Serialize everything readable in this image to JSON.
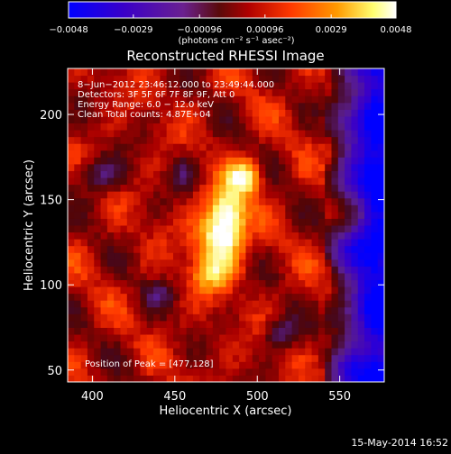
{
  "chart_data": {
    "type": "heatmap",
    "title": "Reconstructed RHESSI Image",
    "xlabel": "Heliocentric X (arcsec)",
    "ylabel": "Heliocentric Y (arcsec)",
    "xlim": [
      385,
      577
    ],
    "ylim": [
      43,
      227
    ],
    "x_ticks": [
      {
        "value": 400,
        "label": "400"
      },
      {
        "value": 450,
        "label": "450"
      },
      {
        "value": 500,
        "label": "500"
      },
      {
        "value": 550,
        "label": "550"
      }
    ],
    "y_ticks": [
      {
        "value": 50,
        "label": "50"
      },
      {
        "value": 100,
        "label": "100"
      },
      {
        "value": 150,
        "label": "150"
      },
      {
        "value": 200,
        "label": "200"
      }
    ],
    "colorbar": {
      "range": [
        -0.0048,
        0.0048
      ],
      "unit_label": "(photons cm⁻² s⁻¹ asec⁻²)",
      "ticks": [
        {
          "value": -0.0048,
          "label": "−0.0048"
        },
        {
          "value": -0.0029,
          "label": "−0.0029"
        },
        {
          "value": -0.00096,
          "label": "−0.00096"
        },
        {
          "value": 0.00096,
          "label": "0.00096"
        },
        {
          "value": 0.0029,
          "label": "0.0029"
        },
        {
          "value": 0.0048,
          "label": "0.0048"
        }
      ]
    },
    "annotations": [
      "8−Jun−2012 23:46:12.000 to 23:49:44.000",
      "Detectors: 3F 5F 6F 7F 8F 9F, Att 0",
      "Energy Range: 6.0 − 12.0 keV",
      "Clean     Total counts: 4.87E+04"
    ],
    "peak_label": "Position of Peak = [477,128]",
    "peak": {
      "x": 477,
      "y": 128
    },
    "colors": {
      "background": "#000000",
      "colormap": [
        "#0000ff",
        "#3a00c8",
        "#6a2090",
        "#7a1010",
        "#c80000",
        "#ff4000",
        "#ff9a00",
        "#ffff70",
        "#ffffff"
      ]
    }
  },
  "footer": {
    "timestamp": "15-May-2014 16:52"
  }
}
